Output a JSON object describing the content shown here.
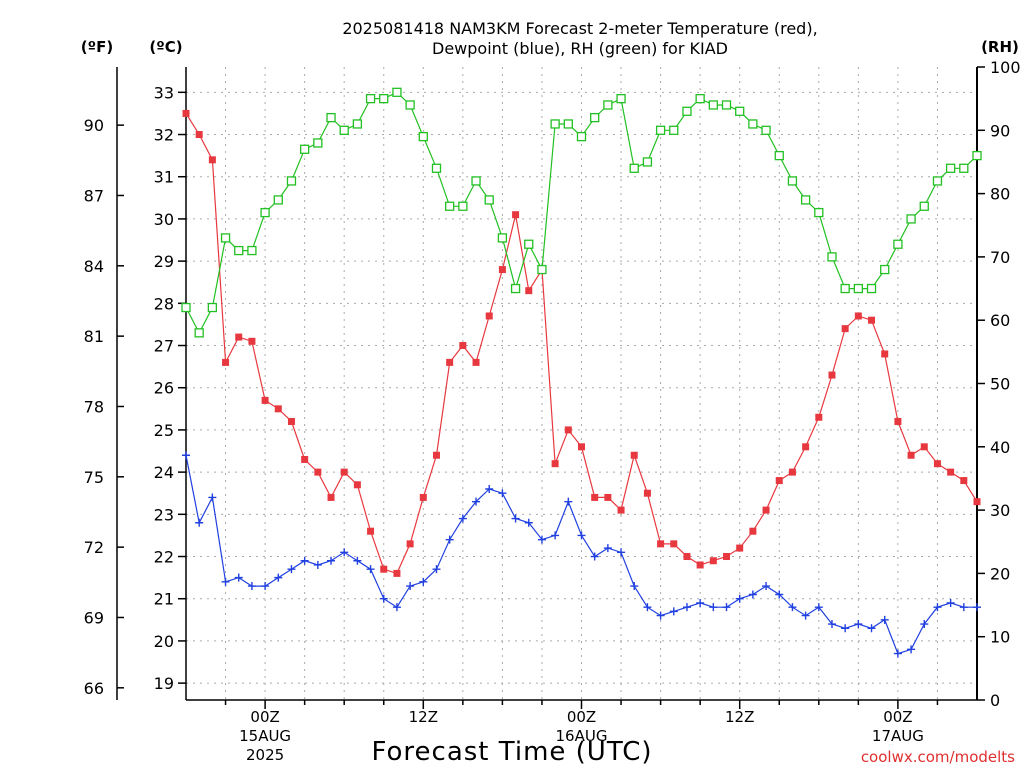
{
  "chart_data": {
    "type": "line",
    "title_line1": "2025081418 NAM3KM Forecast 2-meter Temperature (red),",
    "title_line2": "Dewpoint (blue), RH (green) for KIAD",
    "xlabel": "Forecast Time (UTC)",
    "credit": "coolwx.com/modelts",
    "unit_f": "(ºF)",
    "unit_c": "(ºC)",
    "unit_rh": "(RH)",
    "x_range_hours": [
      -6,
      54
    ],
    "y_celsius_range": [
      18.6,
      33.6
    ],
    "y_rh_range": [
      0,
      100
    ],
    "grid": true,
    "celsius_ticks": [
      19,
      20,
      21,
      22,
      23,
      24,
      25,
      26,
      27,
      28,
      29,
      30,
      31,
      32,
      33
    ],
    "fahrenheit_ticks": [
      66,
      69,
      72,
      75,
      78,
      81,
      84,
      87,
      90
    ],
    "rh_ticks": [
      0,
      10,
      20,
      30,
      40,
      50,
      60,
      70,
      80,
      90,
      100
    ],
    "x_ticks": [
      {
        "hour": 0,
        "label": "00Z",
        "date": "15AUG",
        "year": "2025"
      },
      {
        "hour": 12,
        "label": "12Z",
        "date": "",
        "year": ""
      },
      {
        "hour": 24,
        "label": "00Z",
        "date": "16AUG",
        "year": ""
      },
      {
        "hour": 36,
        "label": "12Z",
        "date": "",
        "year": ""
      },
      {
        "hour": 48,
        "label": "00Z",
        "date": "17AUG",
        "year": ""
      }
    ],
    "hours": [
      -6,
      -5,
      -4,
      -3,
      -2,
      -1,
      0,
      1,
      2,
      3,
      4,
      5,
      6,
      7,
      8,
      9,
      10,
      11,
      12,
      13,
      14,
      15,
      16,
      17,
      18,
      19,
      20,
      21,
      22,
      23,
      24,
      25,
      26,
      27,
      28,
      29,
      30,
      31,
      32,
      33,
      34,
      35,
      36,
      37,
      38,
      39,
      40,
      41,
      42,
      43,
      44,
      45,
      46,
      47,
      48,
      49,
      50,
      51,
      52,
      53,
      54
    ],
    "series": [
      {
        "name": "Temperature",
        "axis": "celsius",
        "color": "#e8383f",
        "marker": "filled-square",
        "values": [
          32.5,
          32.0,
          31.4,
          26.6,
          27.2,
          27.1,
          25.7,
          25.5,
          25.2,
          24.3,
          24.0,
          23.4,
          24.0,
          23.7,
          22.6,
          21.7,
          21.6,
          22.3,
          23.4,
          24.4,
          26.6,
          27.0,
          26.6,
          27.7,
          28.8,
          30.1,
          28.3,
          28.8,
          24.2,
          25.0,
          24.6,
          23.4,
          23.4,
          23.1,
          24.4,
          23.5,
          22.3,
          22.3,
          22.0,
          21.8,
          21.9,
          22.0,
          22.2,
          22.6,
          23.1,
          23.8,
          24.0,
          24.6,
          25.3,
          26.3,
          27.4,
          27.7,
          27.6,
          26.8,
          25.2,
          24.4,
          24.6,
          24.2,
          24.0,
          23.8,
          23.3
        ]
      },
      {
        "name": "Dewpoint",
        "axis": "celsius",
        "color": "#2040e0",
        "marker": "plus",
        "values": [
          24.4,
          22.8,
          23.4,
          21.4,
          21.5,
          21.3,
          21.3,
          21.5,
          21.7,
          21.9,
          21.8,
          21.9,
          22.1,
          21.9,
          21.7,
          21.0,
          20.8,
          21.3,
          21.4,
          21.7,
          22.4,
          22.9,
          23.3,
          23.6,
          23.5,
          22.9,
          22.8,
          22.4,
          22.5,
          23.3,
          22.5,
          22.0,
          22.2,
          22.1,
          21.3,
          20.8,
          20.6,
          20.7,
          20.8,
          20.9,
          20.8,
          20.8,
          21.0,
          21.1,
          21.3,
          21.1,
          20.8,
          20.6,
          20.8,
          20.4,
          20.3,
          20.4,
          20.3,
          20.5,
          19.7,
          19.8,
          20.4,
          20.8,
          20.9,
          20.8,
          20.8
        ]
      },
      {
        "name": "RH",
        "axis": "rh",
        "color": "#22c022",
        "marker": "open-square",
        "values": [
          62,
          58,
          62,
          73,
          71,
          71,
          77,
          79,
          82,
          87,
          88,
          92,
          90,
          91,
          95,
          95,
          96,
          94,
          89,
          84,
          78,
          78,
          82,
          79,
          73,
          65,
          72,
          68,
          91,
          91,
          89,
          92,
          94,
          95,
          84,
          85,
          90,
          90,
          93,
          95,
          94,
          94,
          93,
          91,
          90,
          86,
          82,
          79,
          77,
          70,
          65,
          65,
          65,
          68,
          72,
          76,
          78,
          82,
          84,
          84,
          86
        ]
      }
    ]
  }
}
